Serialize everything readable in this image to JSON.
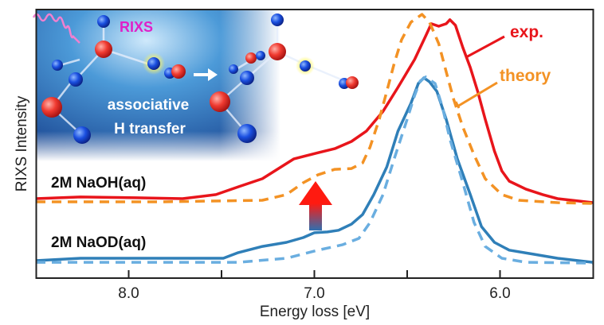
{
  "chart_data": {
    "type": "line",
    "title": "",
    "xlabel": "Energy loss [eV]",
    "ylabel": "RIXS Intensity",
    "xlim": [
      8.5,
      5.5
    ],
    "x_reversed": true,
    "ylim": [
      0,
      1
    ],
    "y_units": "arbitrary",
    "grid": false,
    "xticks": [
      8.0,
      7.5,
      7.0,
      6.5,
      6.0
    ],
    "xtick_labels": [
      "8.0",
      "",
      "7.0",
      "",
      "6.0"
    ],
    "series": [
      {
        "name": "2M NaOH(aq) exp.",
        "color": "#e8151b",
        "style": "solid",
        "x": [
          8.5,
          8.26,
          7.96,
          7.71,
          7.53,
          7.41,
          7.28,
          7.11,
          6.98,
          6.89,
          6.8,
          6.72,
          6.63,
          6.55,
          6.46,
          6.4,
          6.37,
          6.33,
          6.29,
          6.27,
          6.24,
          6.2,
          6.16,
          6.12,
          6.08,
          6.03,
          5.99,
          5.95,
          5.86,
          5.77,
          5.69,
          5.5
        ],
        "y": [
          0.296,
          0.302,
          0.299,
          0.296,
          0.311,
          0.34,
          0.37,
          0.444,
          0.467,
          0.482,
          0.509,
          0.547,
          0.621,
          0.71,
          0.814,
          0.902,
          0.947,
          0.938,
          0.947,
          0.962,
          0.941,
          0.858,
          0.784,
          0.695,
          0.592,
          0.473,
          0.399,
          0.361,
          0.331,
          0.311,
          0.296,
          0.281
        ]
      },
      {
        "name": "2M NaOH(aq) theory",
        "color": "#f39224",
        "style": "dashed",
        "x": [
          8.5,
          7.83,
          7.28,
          7.15,
          7.06,
          6.98,
          6.89,
          6.8,
          6.74,
          6.7,
          6.65,
          6.61,
          6.57,
          6.53,
          6.48,
          6.42,
          6.38,
          6.33,
          6.29,
          6.25,
          6.2,
          6.14,
          6.08,
          5.99,
          5.9,
          5.69,
          5.5
        ],
        "y": [
          0.284,
          0.284,
          0.29,
          0.311,
          0.355,
          0.385,
          0.405,
          0.408,
          0.429,
          0.488,
          0.592,
          0.695,
          0.799,
          0.888,
          0.953,
          0.982,
          0.953,
          0.873,
          0.769,
          0.666,
          0.562,
          0.459,
          0.37,
          0.311,
          0.29,
          0.281,
          0.278
        ]
      },
      {
        "name": "2M NaOD(aq) exp.",
        "color": "#2f7fb8",
        "style": "solid",
        "x": [
          8.5,
          8.26,
          7.83,
          7.49,
          7.41,
          7.28,
          7.15,
          7.06,
          7.0,
          6.93,
          6.87,
          6.8,
          6.74,
          6.68,
          6.61,
          6.55,
          6.48,
          6.44,
          6.41,
          6.38,
          6.34,
          6.29,
          6.23,
          6.16,
          6.1,
          6.03,
          5.95,
          5.82,
          5.69,
          5.5
        ],
        "y": [
          0.065,
          0.074,
          0.074,
          0.074,
          0.095,
          0.118,
          0.133,
          0.151,
          0.169,
          0.172,
          0.178,
          0.201,
          0.237,
          0.311,
          0.414,
          0.547,
          0.651,
          0.725,
          0.746,
          0.731,
          0.695,
          0.592,
          0.444,
          0.311,
          0.192,
          0.133,
          0.104,
          0.089,
          0.074,
          0.059
        ]
      },
      {
        "name": "2M NaOD(aq) theory",
        "color": "#6aaee0",
        "style": "dashed",
        "x": [
          8.5,
          7.41,
          7.15,
          6.98,
          6.85,
          6.76,
          6.7,
          6.63,
          6.57,
          6.5,
          6.46,
          6.43,
          6.4,
          6.35,
          6.31,
          6.27,
          6.2,
          6.14,
          6.08,
          5.99,
          5.86,
          5.5
        ],
        "y": [
          0.059,
          0.059,
          0.074,
          0.104,
          0.124,
          0.148,
          0.207,
          0.311,
          0.444,
          0.592,
          0.68,
          0.734,
          0.749,
          0.725,
          0.636,
          0.518,
          0.355,
          0.207,
          0.118,
          0.074,
          0.059,
          0.056
        ]
      }
    ],
    "annotations": {
      "sample_top": "2M NaOH(aq)",
      "sample_bottom": "2M NaOD(aq)",
      "exp_label": "exp.",
      "theory_label": "theory",
      "inset_rixs": "RIXS",
      "inset_line1": "associative",
      "inset_line2": "H transfer"
    },
    "colors": {
      "exp": "#e8151b",
      "theory": "#f39224",
      "rixs": "#e020c8",
      "inset_bg": "#1d5fa8"
    }
  }
}
